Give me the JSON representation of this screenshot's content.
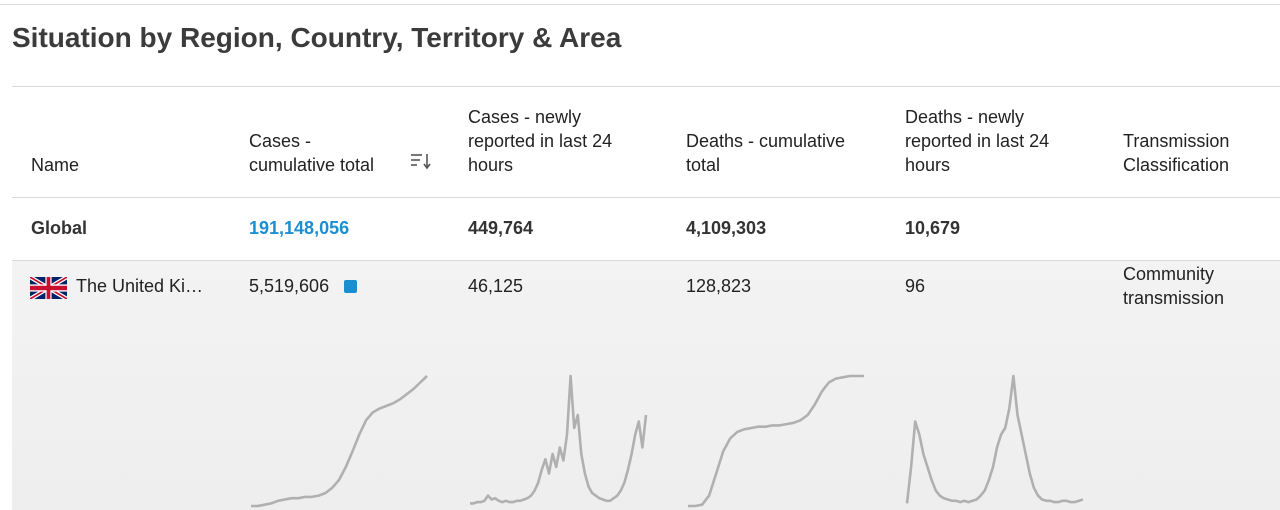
{
  "page": {
    "title": "Situation by Region, Country, Territory & Area"
  },
  "table": {
    "columns": [
      {
        "key": "name",
        "label_lines": [
          "Name"
        ]
      },
      {
        "key": "cases_cumulative",
        "label_lines": [
          "Cases -",
          "cumulative total"
        ]
      },
      {
        "key": "cases_new",
        "label_lines": [
          "Cases - newly",
          "reported in last 24",
          "hours"
        ]
      },
      {
        "key": "deaths_cumulative",
        "label_lines": [
          "Deaths - cumulative",
          "total"
        ]
      },
      {
        "key": "deaths_new",
        "label_lines": [
          "Deaths - newly",
          "reported in last 24",
          "hours"
        ]
      },
      {
        "key": "transmission",
        "label_lines": [
          "Transmission",
          "Classification"
        ]
      }
    ],
    "sort_icon": "sort-descending-icon",
    "global": {
      "name": "Global",
      "cases_cumulative": "191,148,056",
      "cases_new": "449,764",
      "deaths_cumulative": "4,109,303",
      "deaths_new": "10,679"
    },
    "rows": [
      {
        "flag_icon": "uk-flag-icon",
        "name": "The United Ki…",
        "cases_cumulative": "5,519,606",
        "badge_color": "#1a8fd0",
        "cases_new": "46,125",
        "deaths_cumulative": "128,823",
        "deaths_new": "96",
        "transmission_lines": [
          "Community",
          "transmission"
        ]
      }
    ]
  },
  "colors": {
    "link": "#1b8fd2",
    "sparkline": "#b0b0b0",
    "row_bg": "#f2f2f2"
  },
  "sparklines": {
    "cases_cumulative": [
      0,
      0,
      1,
      2,
      4,
      5,
      6,
      6,
      7,
      7,
      8,
      10,
      14,
      20,
      30,
      42,
      55,
      66,
      72,
      75,
      77,
      79,
      82,
      86,
      90,
      95,
      100
    ],
    "cases_new": [
      2,
      2,
      3,
      3,
      4,
      8,
      5,
      6,
      4,
      3,
      4,
      3,
      3,
      4,
      4,
      5,
      6,
      8,
      12,
      18,
      28,
      36,
      25,
      40,
      30,
      45,
      35,
      55,
      100,
      60,
      70,
      40,
      25,
      15,
      10,
      8,
      6,
      5,
      4,
      4,
      6,
      8,
      12,
      18,
      28,
      40,
      55,
      65,
      45,
      70
    ],
    "deaths_cumulative": [
      0,
      0,
      1,
      8,
      25,
      42,
      52,
      57,
      59,
      60,
      61,
      61,
      62,
      62,
      63,
      64,
      66,
      70,
      78,
      88,
      95,
      98,
      99,
      100,
      100,
      100
    ],
    "deaths_new": [
      2,
      30,
      65,
      55,
      40,
      30,
      20,
      12,
      8,
      6,
      5,
      4,
      4,
      3,
      4,
      3,
      4,
      5,
      8,
      12,
      20,
      30,
      45,
      55,
      60,
      75,
      100,
      70,
      55,
      40,
      25,
      14,
      8,
      5,
      4,
      4,
      3,
      3,
      4,
      4,
      3,
      3,
      4,
      5
    ]
  }
}
